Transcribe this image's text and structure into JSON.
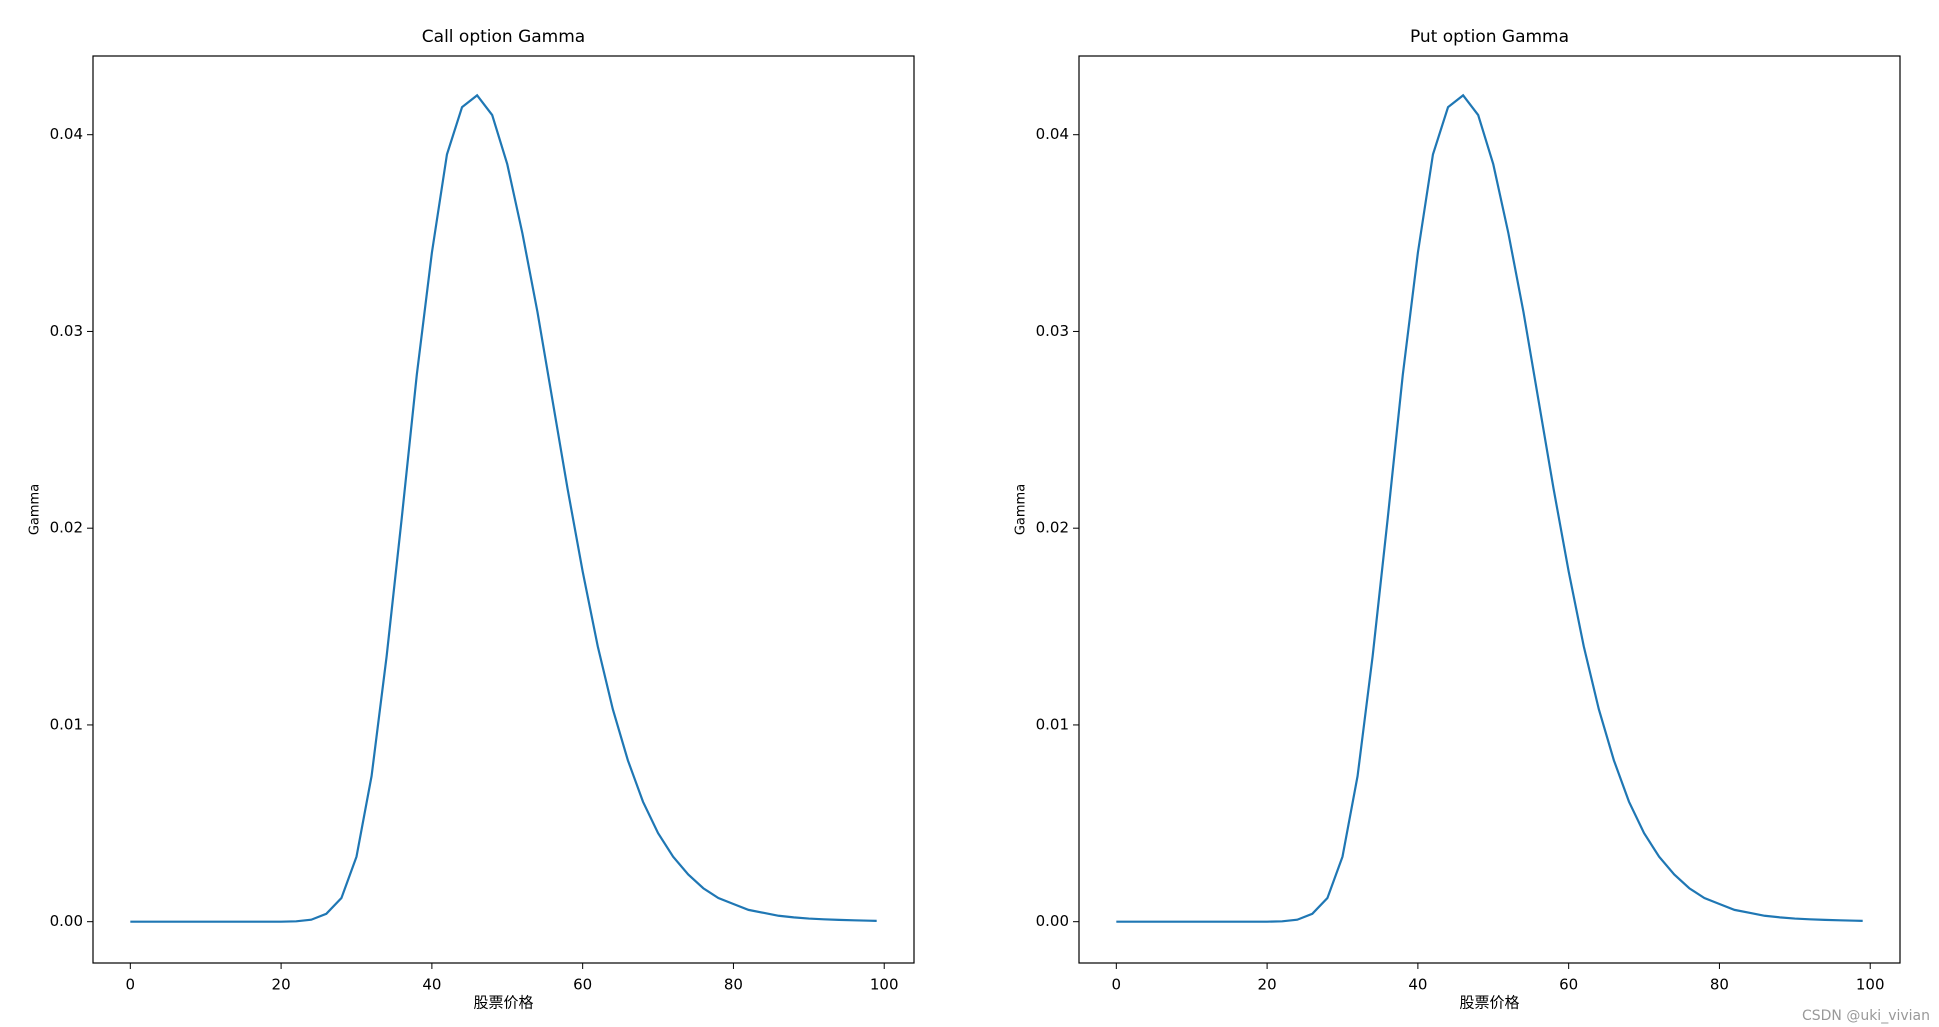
{
  "chart_data": [
    {
      "type": "line",
      "title": "Call option Gamma",
      "x_label": "股票价格",
      "y_label": "Gamma",
      "x": [
        0,
        2,
        4,
        6,
        8,
        10,
        12,
        14,
        16,
        18,
        20,
        22,
        24,
        26,
        28,
        30,
        32,
        34,
        36,
        38,
        40,
        42,
        44,
        46,
        48,
        50,
        52,
        54,
        56,
        58,
        60,
        62,
        64,
        66,
        68,
        70,
        72,
        74,
        76,
        78,
        80,
        82,
        84,
        86,
        88,
        90,
        92,
        94,
        96,
        98,
        99
      ],
      "series": [
        {
          "name": "Gamma",
          "color": "#1f77b4",
          "values": [
            0,
            0,
            0,
            0,
            0,
            0,
            0,
            0,
            0,
            0,
            0,
            2e-05,
            0.0001,
            0.0004,
            0.0012,
            0.0033,
            0.0074,
            0.0135,
            0.0205,
            0.0278,
            0.034,
            0.039,
            0.0414,
            0.042,
            0.041,
            0.0385,
            0.035,
            0.031,
            0.0265,
            0.022,
            0.0178,
            0.014,
            0.0108,
            0.0082,
            0.0061,
            0.0045,
            0.0033,
            0.0024,
            0.0017,
            0.0012,
            0.0009,
            0.0006,
            0.00045,
            0.0003,
            0.00022,
            0.00016,
            0.00012,
            9e-05,
            7e-05,
            5e-05,
            4e-05
          ]
        }
      ],
      "xlim": [
        -4.95,
        103.95
      ],
      "xticks": [
        0,
        20,
        40,
        60,
        80,
        100
      ],
      "ylim": [
        -0.0021,
        0.044
      ],
      "yticks": [
        {
          "value": 0,
          "label": "0.00"
        },
        {
          "value": 0.01,
          "label": "0.01"
        },
        {
          "value": 0.02,
          "label": "0.02"
        },
        {
          "value": 0.03,
          "label": "0.03"
        },
        {
          "value": 0.04,
          "label": "0.04"
        }
      ],
      "grid": false
    },
    {
      "type": "line",
      "title": "Put option Gamma",
      "x_label": "股票价格",
      "y_label": "Gamma",
      "x": [
        0,
        2,
        4,
        6,
        8,
        10,
        12,
        14,
        16,
        18,
        20,
        22,
        24,
        26,
        28,
        30,
        32,
        34,
        36,
        38,
        40,
        42,
        44,
        46,
        48,
        50,
        52,
        54,
        56,
        58,
        60,
        62,
        64,
        66,
        68,
        70,
        72,
        74,
        76,
        78,
        80,
        82,
        84,
        86,
        88,
        90,
        92,
        94,
        96,
        98,
        99
      ],
      "series": [
        {
          "name": "Gamma",
          "color": "#1f77b4",
          "values": [
            0,
            0,
            0,
            0,
            0,
            0,
            0,
            0,
            0,
            0,
            0,
            2e-05,
            0.0001,
            0.0004,
            0.0012,
            0.0033,
            0.0074,
            0.0135,
            0.0205,
            0.0278,
            0.034,
            0.039,
            0.0414,
            0.042,
            0.041,
            0.0385,
            0.035,
            0.031,
            0.0265,
            0.022,
            0.0178,
            0.014,
            0.0108,
            0.0082,
            0.0061,
            0.0045,
            0.0033,
            0.0024,
            0.0017,
            0.0012,
            0.0009,
            0.0006,
            0.00045,
            0.0003,
            0.00022,
            0.00016,
            0.00012,
            9e-05,
            7e-05,
            5e-05,
            4e-05
          ]
        }
      ],
      "xlim": [
        -4.95,
        103.95
      ],
      "xticks": [
        0,
        20,
        40,
        60,
        80,
        100
      ],
      "ylim": [
        -0.0021,
        0.044
      ],
      "yticks": [
        {
          "value": 0,
          "label": "0.00"
        },
        {
          "value": 0.01,
          "label": "0.01"
        },
        {
          "value": 0.02,
          "label": "0.02"
        },
        {
          "value": 0.03,
          "label": "0.03"
        },
        {
          "value": 0.04,
          "label": "0.04"
        }
      ],
      "grid": false
    }
  ],
  "watermark": "CSDN @uki_vivian"
}
